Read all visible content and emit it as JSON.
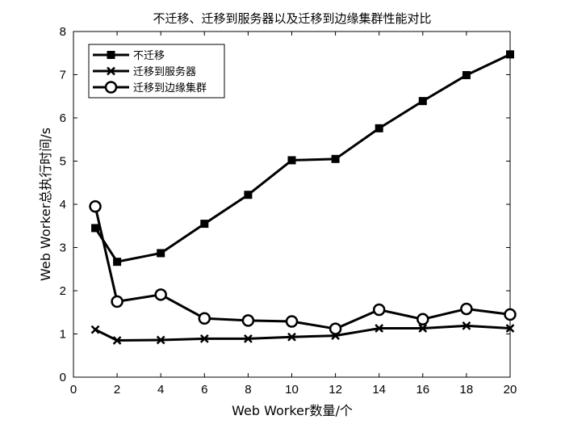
{
  "chart_data": {
    "type": "line",
    "title": "不迁移、迁移到服务器以及迁移到边缘集群性能对比",
    "xlabel": "Web Worker数量/个",
    "ylabel": "Web Worker总执行时间/s",
    "xlim": [
      0,
      20
    ],
    "ylim": [
      0,
      8
    ],
    "xticks": [
      0,
      2,
      4,
      6,
      8,
      10,
      12,
      14,
      16,
      18,
      20
    ],
    "yticks": [
      0,
      1,
      2,
      3,
      4,
      5,
      6,
      7,
      8
    ],
    "grid": false,
    "legend_position": "top-left",
    "x": [
      1,
      2,
      4,
      6,
      8,
      10,
      12,
      14,
      16,
      18,
      20
    ],
    "series": [
      {
        "name": "不迁移",
        "marker": "square",
        "color": "#000000",
        "values": [
          3.45,
          2.67,
          2.87,
          3.55,
          4.22,
          5.02,
          5.05,
          5.76,
          6.39,
          6.99,
          7.47
        ]
      },
      {
        "name": "迁移到服务器",
        "marker": "x",
        "color": "#000000",
        "values": [
          1.1,
          0.85,
          0.86,
          0.89,
          0.89,
          0.93,
          0.96,
          1.13,
          1.13,
          1.19,
          1.13
        ]
      },
      {
        "name": "迁移到边缘集群",
        "marker": "circle",
        "color": "#000000",
        "values": [
          3.95,
          1.75,
          1.91,
          1.36,
          1.31,
          1.29,
          1.12,
          1.56,
          1.34,
          1.58,
          1.45
        ]
      }
    ]
  }
}
